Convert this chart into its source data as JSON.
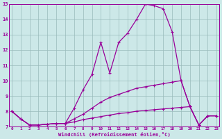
{
  "xlabel": "Windchill (Refroidissement éolien,°C)",
  "background_color": "#cce8e8",
  "line_color": "#990099",
  "grid_color": "#99bbbb",
  "xlim": [
    0,
    23
  ],
  "ylim": [
    7,
    15
  ],
  "yticks": [
    7,
    8,
    9,
    10,
    11,
    12,
    13,
    14,
    15
  ],
  "xticks": [
    0,
    1,
    2,
    3,
    4,
    5,
    6,
    7,
    8,
    9,
    10,
    11,
    12,
    13,
    14,
    15,
    16,
    17,
    18,
    19,
    20,
    21,
    22,
    23
  ],
  "series": [
    [
      8.0,
      7.5,
      7.1,
      7.1,
      7.15,
      7.2,
      7.2,
      8.2,
      9.4,
      10.4,
      12.5,
      10.5,
      12.5,
      13.1,
      14.0,
      15.0,
      14.9,
      14.7,
      13.2,
      10.0,
      8.3,
      7.1,
      7.7,
      7.7
    ],
    [
      8.0,
      7.5,
      7.1,
      7.1,
      7.15,
      7.2,
      7.2,
      7.5,
      7.8,
      8.2,
      8.6,
      8.9,
      9.1,
      9.3,
      9.5,
      9.6,
      9.7,
      9.8,
      9.9,
      10.0,
      8.3,
      7.1,
      7.7,
      7.7
    ],
    [
      8.0,
      7.5,
      7.1,
      7.1,
      7.15,
      7.2,
      7.2,
      7.3,
      7.45,
      7.55,
      7.65,
      7.75,
      7.85,
      7.9,
      8.0,
      8.05,
      8.1,
      8.15,
      8.2,
      8.25,
      8.3,
      7.1,
      7.7,
      7.7
    ]
  ]
}
